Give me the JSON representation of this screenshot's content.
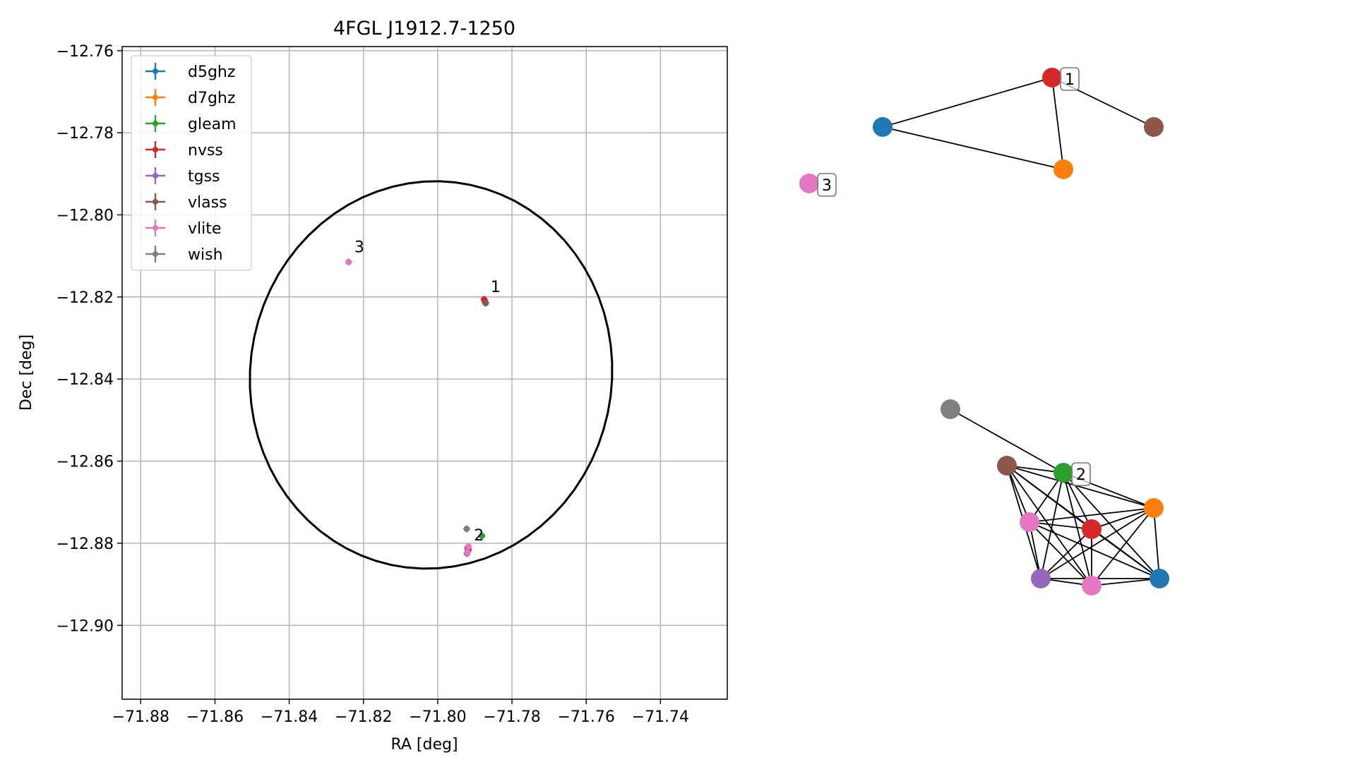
{
  "chart_data": [
    {
      "type": "scatter",
      "title": "4FGL J1912.7-1250",
      "xlabel": "RA [deg]",
      "ylabel": "Dec [deg]",
      "xlim": [
        -71.885,
        -71.722
      ],
      "ylim": [
        -12.918,
        -12.759
      ],
      "xticks": [
        -71.88,
        -71.86,
        -71.84,
        -71.82,
        -71.8,
        -71.78,
        -71.76,
        -71.74
      ],
      "xtick_labels": [
        "−71.88",
        "−71.86",
        "−71.84",
        "−71.82",
        "−71.80",
        "−71.78",
        "−71.76",
        "−71.74"
      ],
      "yticks": [
        -12.76,
        -12.78,
        -12.8,
        -12.82,
        -12.84,
        -12.86,
        -12.88,
        -12.9
      ],
      "ytick_labels": [
        "−12.76",
        "−12.78",
        "−12.80",
        "−12.82",
        "−12.84",
        "−12.86",
        "−12.88",
        "−12.90"
      ],
      "grid": true,
      "legend_position": "top-left",
      "series": [
        {
          "name": "d5ghz",
          "color": "#1f77b4",
          "points": [
            {
              "x": -71.7872,
              "y": -12.8212
            },
            {
              "x": -71.7918,
              "y": -12.8818
            }
          ]
        },
        {
          "name": "d7ghz",
          "color": "#ff7f0e",
          "points": [
            {
              "x": -71.7873,
              "y": -12.8211
            },
            {
              "x": -71.7917,
              "y": -12.8816
            }
          ]
        },
        {
          "name": "gleam",
          "color": "#2ca02c",
          "points": [
            {
              "x": -71.7881,
              "y": -12.8782
            }
          ]
        },
        {
          "name": "nvss",
          "color": "#d62728",
          "points": [
            {
              "x": -71.7875,
              "y": -12.8206
            },
            {
              "x": -71.7919,
              "y": -12.881
            }
          ]
        },
        {
          "name": "tgss",
          "color": "#9467bd",
          "points": [
            {
              "x": -71.7921,
              "y": -12.8825
            }
          ]
        },
        {
          "name": "vlass",
          "color": "#8c564b",
          "points": [
            {
              "x": -71.7871,
              "y": -12.8215
            },
            {
              "x": -71.7918,
              "y": -12.8815
            }
          ]
        },
        {
          "name": "vlite",
          "color": "#e377c2",
          "points": [
            {
              "x": -71.824,
              "y": -12.8115
            },
            {
              "x": -71.7917,
              "y": -12.8808
            },
            {
              "x": -71.792,
              "y": -12.8822
            }
          ]
        },
        {
          "name": "wish",
          "color": "#7f7f7f",
          "points": [
            {
              "x": -71.7922,
              "y": -12.8765
            }
          ]
        }
      ],
      "annotations": [
        {
          "text": "1",
          "x": -71.7865,
          "y": -12.8195
        },
        {
          "text": "2",
          "x": -71.791,
          "y": -12.88
        },
        {
          "text": "3",
          "x": -71.8232,
          "y": -12.8098
        }
      ],
      "ellipse": {
        "center": {
          "x": -71.8018,
          "y": -12.839
        },
        "semi_x": 0.049,
        "semi_y": 0.047,
        "rotation_deg": 18
      }
    },
    {
      "type": "network",
      "clusters": [
        {
          "label": "1",
          "label_node": 1,
          "nodes": [
            {
              "color": "#1f77b4",
              "pos": [
                0.2,
                0.12
              ]
            },
            {
              "color": "#d62728",
              "pos": [
                0.5,
                0.05
              ]
            },
            {
              "color": "#ff7f0e",
              "pos": [
                0.52,
                0.18
              ]
            },
            {
              "color": "#8c564b",
              "pos": [
                0.68,
                0.12
              ]
            }
          ],
          "edges": [
            [
              0,
              1
            ],
            [
              0,
              2
            ],
            [
              1,
              2
            ],
            [
              1,
              3
            ]
          ]
        },
        {
          "label": "3",
          "label_node": 0,
          "nodes": [
            {
              "color": "#e377c2",
              "pos": [
                0.07,
                0.2
              ]
            }
          ],
          "edges": []
        },
        {
          "label": "2",
          "label_node": 2,
          "nodes": [
            {
              "color": "#7f7f7f",
              "pos": [
                0.32,
                0.52
              ]
            },
            {
              "color": "#8c564b",
              "pos": [
                0.42,
                0.6
              ]
            },
            {
              "color": "#2ca02c",
              "pos": [
                0.52,
                0.61
              ]
            },
            {
              "color": "#ff7f0e",
              "pos": [
                0.68,
                0.66
              ]
            },
            {
              "color": "#e377c2",
              "pos": [
                0.46,
                0.68
              ]
            },
            {
              "color": "#d62728",
              "pos": [
                0.57,
                0.69
              ]
            },
            {
              "color": "#1f77b4",
              "pos": [
                0.69,
                0.76
              ]
            },
            {
              "color": "#9467bd",
              "pos": [
                0.48,
                0.76
              ]
            },
            {
              "color": "#e377c2",
              "pos": [
                0.57,
                0.77
              ]
            }
          ],
          "edges": [
            [
              0,
              2
            ],
            [
              1,
              2
            ],
            [
              1,
              3
            ],
            [
              1,
              4
            ],
            [
              1,
              5
            ],
            [
              1,
              6
            ],
            [
              1,
              7
            ],
            [
              1,
              8
            ],
            [
              2,
              3
            ],
            [
              2,
              4
            ],
            [
              2,
              5
            ],
            [
              2,
              6
            ],
            [
              2,
              7
            ],
            [
              2,
              8
            ],
            [
              3,
              4
            ],
            [
              3,
              5
            ],
            [
              3,
              6
            ],
            [
              3,
              7
            ],
            [
              3,
              8
            ],
            [
              4,
              5
            ],
            [
              4,
              6
            ],
            [
              4,
              7
            ],
            [
              4,
              8
            ],
            [
              5,
              6
            ],
            [
              5,
              7
            ],
            [
              5,
              8
            ],
            [
              6,
              7
            ],
            [
              6,
              8
            ],
            [
              7,
              8
            ]
          ]
        }
      ]
    }
  ]
}
